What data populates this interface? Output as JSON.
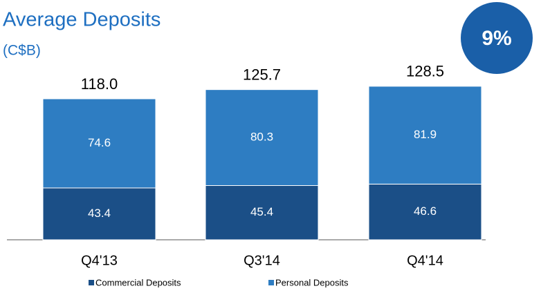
{
  "chart_data": {
    "type": "stacked_bar",
    "title": "Average Deposits",
    "subtitle": "(C$B)",
    "badge": "9%",
    "categories": [
      "Q4'13",
      "Q3'14",
      "Q4'14"
    ],
    "series": [
      {
        "name": "Commercial Deposits",
        "color": "#1b4f87",
        "values": [
          43.4,
          45.4,
          46.6
        ]
      },
      {
        "name": "Personal Deposits",
        "color": "#2e7dc2",
        "values": [
          74.6,
          80.3,
          81.9
        ]
      }
    ],
    "total_labels": [
      "118.0",
      "125.7",
      "128.5"
    ]
  }
}
